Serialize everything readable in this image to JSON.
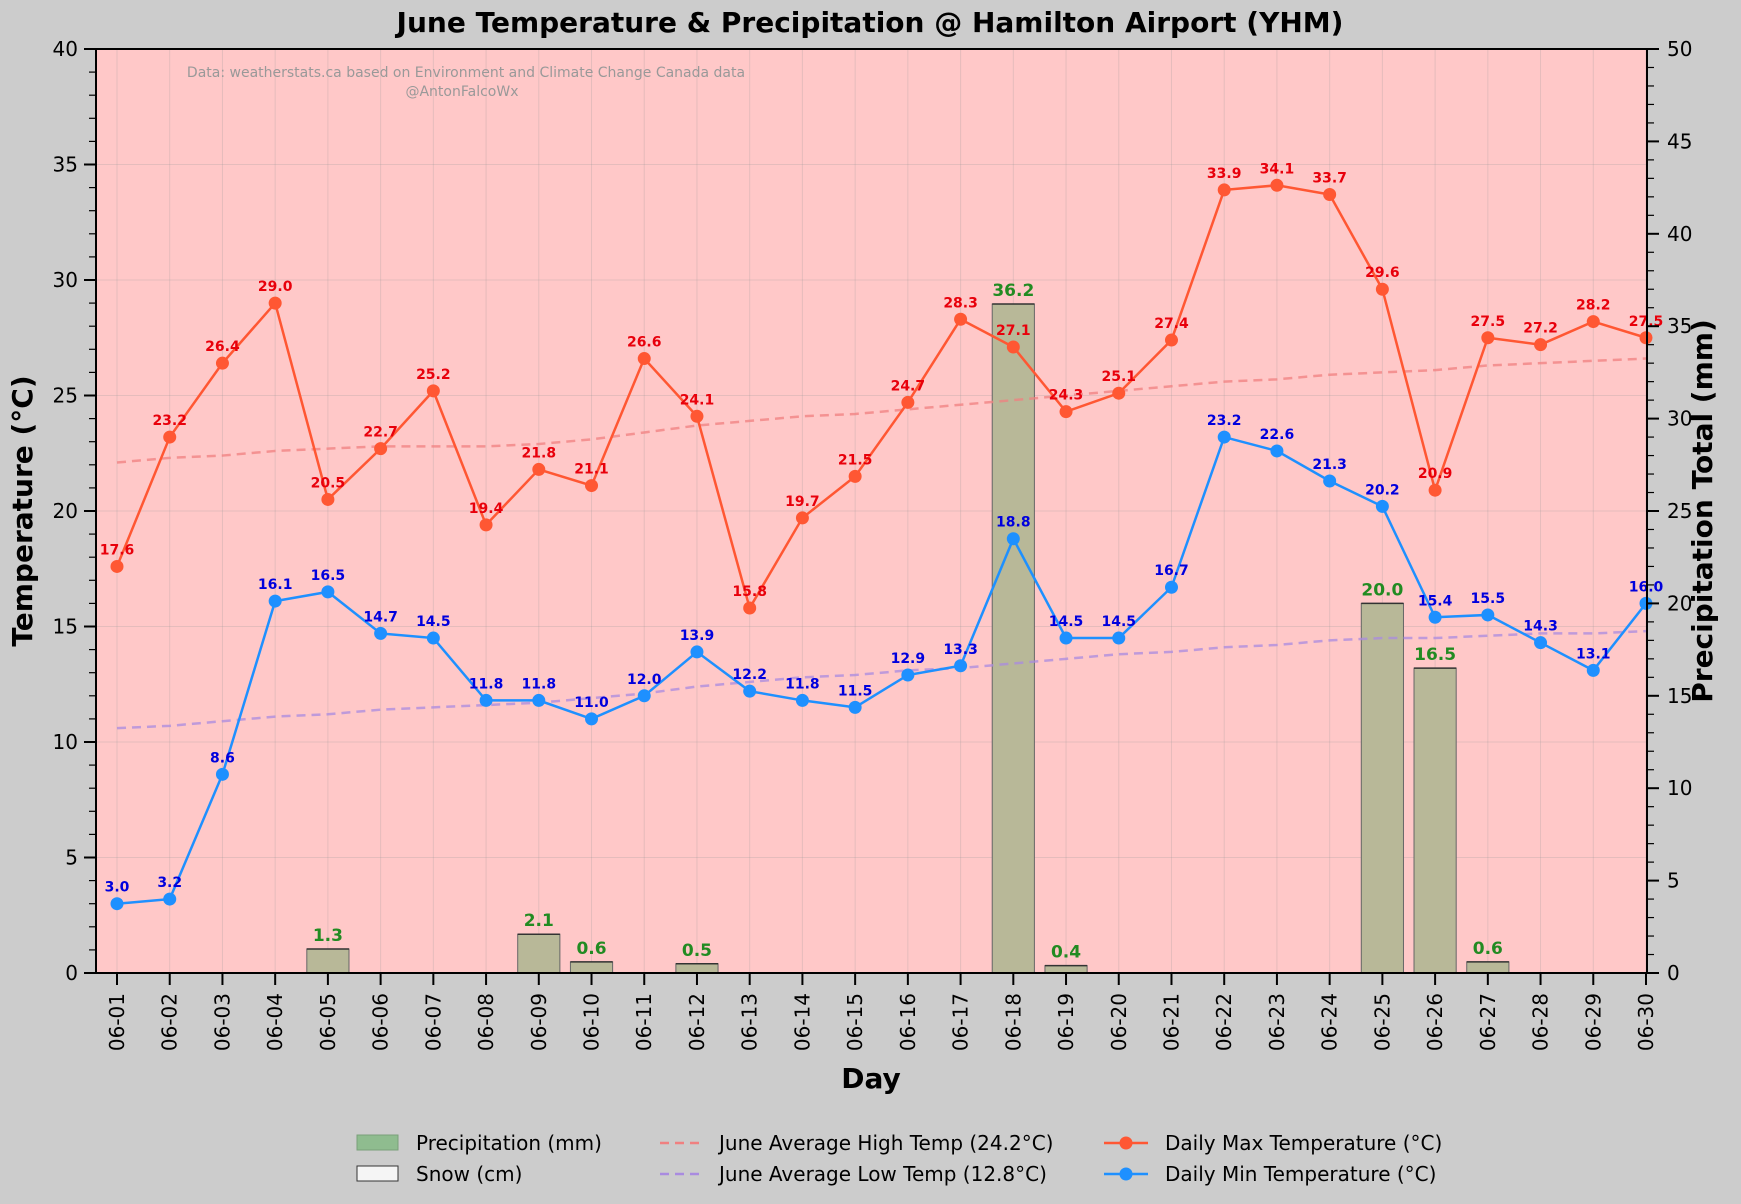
{
  "chart_data": {
    "type": "line",
    "title": "June Temperature & Precipitation @ Hamilton Airport (YHM)",
    "credit_line1": "Data: weatherstats.ca based on Environment and Climate Change Canada data",
    "credit_line2": "@AntonFalcoWx",
    "xlabel": "Day",
    "ylabel_left": "Temperature (°C)",
    "ylabel_right": "Precipitation Total (mm)",
    "ylim_left": [
      0,
      40
    ],
    "ylim_right": [
      0,
      50
    ],
    "yticks_left": [
      0,
      5,
      10,
      15,
      20,
      25,
      30,
      35,
      40
    ],
    "yticks_right": [
      0,
      5,
      10,
      15,
      20,
      25,
      30,
      35,
      40,
      45,
      50
    ],
    "grid": true,
    "categories": [
      "06-01",
      "06-02",
      "06-03",
      "06-04",
      "06-05",
      "06-06",
      "06-07",
      "06-08",
      "06-09",
      "06-10",
      "06-11",
      "06-12",
      "06-13",
      "06-14",
      "06-15",
      "06-16",
      "06-17",
      "06-18",
      "06-19",
      "06-20",
      "06-21",
      "06-22",
      "06-23",
      "06-24",
      "06-25",
      "06-26",
      "06-27",
      "06-28",
      "06-29",
      "06-30"
    ],
    "series": [
      {
        "name": "Daily Max Temperature (°C)",
        "kind": "line",
        "color": "#ff5733",
        "values": [
          17.6,
          23.2,
          26.4,
          29.0,
          20.5,
          22.7,
          25.2,
          19.4,
          21.8,
          21.1,
          26.6,
          24.1,
          15.8,
          19.7,
          21.5,
          24.7,
          28.3,
          27.1,
          24.3,
          25.1,
          27.4,
          33.9,
          34.1,
          33.7,
          29.6,
          20.9,
          27.5,
          27.2,
          28.2,
          27.5
        ]
      },
      {
        "name": "Daily Min Temperature (°C)",
        "kind": "line",
        "color": "#1e90ff",
        "values": [
          3.0,
          3.2,
          8.6,
          16.1,
          16.5,
          14.7,
          14.5,
          11.8,
          11.8,
          11.0,
          12.0,
          13.9,
          12.2,
          11.8,
          11.5,
          12.9,
          13.3,
          18.8,
          14.5,
          14.5,
          16.7,
          23.2,
          22.6,
          21.3,
          20.2,
          15.4,
          15.5,
          14.3,
          13.1,
          16.0
        ]
      },
      {
        "name": "June Average High Temp (24.2°C)",
        "kind": "dashed",
        "color": "#f08080",
        "values": [
          22.1,
          22.3,
          22.4,
          22.6,
          22.7,
          22.8,
          22.8,
          22.8,
          22.9,
          23.1,
          23.4,
          23.7,
          23.9,
          24.1,
          24.2,
          24.4,
          24.6,
          24.8,
          25.0,
          25.2,
          25.4,
          25.6,
          25.7,
          25.9,
          26.0,
          26.1,
          26.3,
          26.4,
          26.5,
          26.6
        ]
      },
      {
        "name": "June Average Low Temp (12.8°C)",
        "kind": "dashed",
        "color": "#a98be0",
        "values": [
          10.6,
          10.7,
          10.9,
          11.1,
          11.2,
          11.4,
          11.5,
          11.6,
          11.7,
          11.9,
          12.1,
          12.4,
          12.6,
          12.8,
          12.9,
          13.1,
          13.2,
          13.4,
          13.6,
          13.8,
          13.9,
          14.1,
          14.2,
          14.4,
          14.5,
          14.5,
          14.6,
          14.7,
          14.7,
          14.8
        ]
      },
      {
        "name": "Precipitation (mm)",
        "kind": "bar",
        "axis": "right",
        "color": "#8fbc8f",
        "values": [
          0,
          0,
          0,
          0,
          1.3,
          0,
          0,
          0,
          2.1,
          0.6,
          0,
          0.5,
          0,
          0,
          0,
          0,
          0,
          36.2,
          0.4,
          0,
          0,
          0,
          0,
          0,
          20.0,
          16.5,
          0.6,
          0,
          0,
          0
        ]
      },
      {
        "name": "Snow (cm)",
        "kind": "bar",
        "axis": "right",
        "color": "#f5f5f5",
        "values": [
          0,
          0,
          0,
          0,
          0,
          0,
          0,
          0,
          0,
          0,
          0,
          0,
          0,
          0,
          0,
          0,
          0,
          0,
          0,
          0,
          0,
          0,
          0,
          0,
          0,
          0,
          0,
          0,
          0,
          0
        ]
      }
    ],
    "colors": {
      "background": "#cccccc",
      "plot_background": "#ffc8c8",
      "bar_overlay": "#b8b898"
    },
    "legend": {
      "placement": "bottom-center",
      "columns": [
        [
          "Precipitation (mm)",
          "Snow (cm)"
        ],
        [
          "June Average High Temp (24.2°C)",
          "June Average Low Temp (12.8°C)"
        ],
        [
          "Daily Max Temperature (°C)",
          "Daily Min Temperature (°C)"
        ]
      ]
    }
  }
}
